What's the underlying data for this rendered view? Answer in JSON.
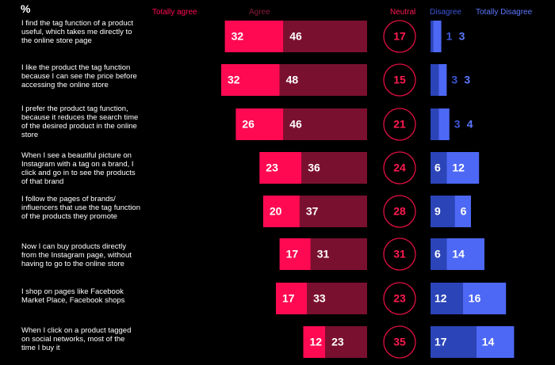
{
  "percent_symbol": "%",
  "headers": {
    "totally_agree": "Totally agree",
    "agree": "Agree",
    "neutral": "Neutral",
    "disagree": "Disagree",
    "totally_disagree": "Totally Disagree"
  },
  "colors": {
    "totally_agree": "#ff0a52",
    "agree": "#7a1030",
    "neutral_ring": "#e01040",
    "neutral_text": "#ff1a4f",
    "disagree": "#2b44b8",
    "totally_disagree": "#4d68f5",
    "agree_header_text": "#8b1a3b",
    "disagree_header_text": "#3c55d6",
    "totally_disagree_header_text": "#5d78ff"
  },
  "chart_data": {
    "type": "bar",
    "title": "",
    "unit": "%",
    "categories": [
      "I find the tag function of a product useful, which takes me directly to the online store page",
      "I like the product the tag function because I can see the price before accessing the online store",
      "I prefer the product tag function, because it reduces the search time of the desired product in the online store",
      "When I see a beautiful picture on Instagram with a tag on a brand, I click and go in to see the products of that brand",
      "I follow the pages of brands/ influencers that use the tag function of the products they promote",
      "Now I can buy products directly from the Instagram page, without having to go to the online store",
      "I shop on pages like Facebook Market Place, Facebook shops",
      "When I click on a product tagged on social networks, most of the time I buy it"
    ],
    "series": [
      {
        "name": "Totally agree",
        "values": [
          32,
          32,
          26,
          23,
          20,
          17,
          17,
          12
        ]
      },
      {
        "name": "Agree",
        "values": [
          46,
          48,
          46,
          36,
          37,
          31,
          33,
          23
        ]
      },
      {
        "name": "Neutral",
        "values": [
          17,
          15,
          21,
          24,
          28,
          31,
          23,
          35
        ]
      },
      {
        "name": "Disagree",
        "values": [
          1,
          3,
          3,
          6,
          9,
          6,
          12,
          17
        ]
      },
      {
        "name": "Totally Disagree",
        "values": [
          3,
          3,
          4,
          12,
          6,
          14,
          16,
          14
        ]
      }
    ]
  }
}
